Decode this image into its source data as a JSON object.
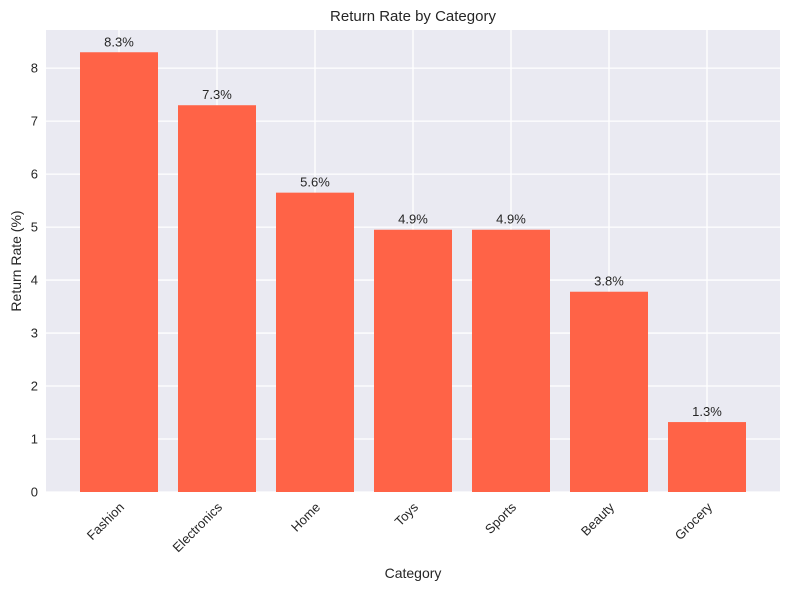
{
  "chart_data": {
    "type": "bar",
    "title": "Return Rate by Category",
    "xlabel": "Category",
    "ylabel": "Return Rate (%)",
    "categories": [
      "Fashion",
      "Electronics",
      "Home",
      "Toys",
      "Sports",
      "Beauty",
      "Grocery"
    ],
    "values": [
      8.3,
      7.3,
      5.65,
      4.95,
      4.95,
      3.78,
      1.32
    ],
    "value_labels": [
      "8.3%",
      "7.3%",
      "5.6%",
      "4.9%",
      "4.9%",
      "3.8%",
      "1.3%"
    ],
    "ylim": [
      0,
      8.72
    ],
    "yticks": [
      0,
      1,
      2,
      3,
      4,
      5,
      6,
      7,
      8
    ],
    "ytick_labels": [
      "0",
      "1",
      "2",
      "3",
      "4",
      "5",
      "6",
      "7",
      "8"
    ],
    "grid": true,
    "colors": {
      "bar": "#ff6347",
      "plot_background": "#eaeaf2",
      "grid": "#ffffff",
      "text": "#262626"
    }
  }
}
